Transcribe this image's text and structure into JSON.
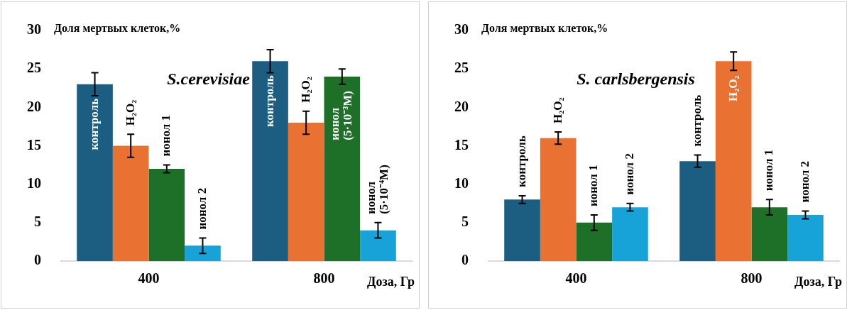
{
  "chart_data": [
    {
      "type": "bar",
      "title": "S.cerevisiae",
      "ylabel": "Доля мертвых клеток,%",
      "xlabel": "Доза, Гр",
      "categories": [
        "400",
        "800"
      ],
      "ylim": [
        0,
        30
      ],
      "yticks": [
        0,
        5,
        10,
        15,
        20,
        25,
        30
      ],
      "grid": false,
      "legend": false,
      "series": [
        {
          "color": "#1b5e82",
          "values": [
            23,
            26
          ],
          "errors": [
            1.5,
            1.5
          ]
        },
        {
          "color": "#e97132",
          "values": [
            15,
            18
          ],
          "errors": [
            1.5,
            1.5
          ]
        },
        {
          "color": "#1e7028",
          "values": [
            12,
            24
          ],
          "errors": [
            0.5,
            1
          ]
        },
        {
          "color": "#17a2d8",
          "values": [
            2,
            4
          ],
          "errors": [
            1,
            1
          ]
        }
      ],
      "annotations": [
        "контроль",
        "H₂O₂",
        "ионол 1",
        "ионол 2",
        "контроль",
        "H₂O₂",
        "ионол (5·10⁻³M)",
        "ионол (5·10⁻⁴M)"
      ]
    },
    {
      "type": "bar",
      "title": "S. carlsbergensis",
      "ylabel": "Доля мертвых клеток,%",
      "xlabel": "Доза, Гр",
      "categories": [
        "400",
        "800"
      ],
      "ylim": [
        0,
        30
      ],
      "yticks": [
        0,
        5,
        10,
        15,
        20,
        25,
        30
      ],
      "grid": false,
      "legend": false,
      "series": [
        {
          "color": "#1b5e82",
          "values": [
            8,
            13
          ],
          "errors": [
            0.5,
            0.8
          ]
        },
        {
          "color": "#e97132",
          "values": [
            16,
            26
          ],
          "errors": [
            0.8,
            1.2
          ]
        },
        {
          "color": "#1e7028",
          "values": [
            5,
            7
          ],
          "errors": [
            1,
            1
          ]
        },
        {
          "color": "#17a2d8",
          "values": [
            7,
            6
          ],
          "errors": [
            0.5,
            0.5
          ]
        }
      ],
      "annotations": [
        "контроль",
        "H₂O₂",
        "ионол 1",
        "ионол 2",
        "контроль",
        "H₂O₂",
        "ионол 1",
        "ионол 2"
      ]
    }
  ]
}
